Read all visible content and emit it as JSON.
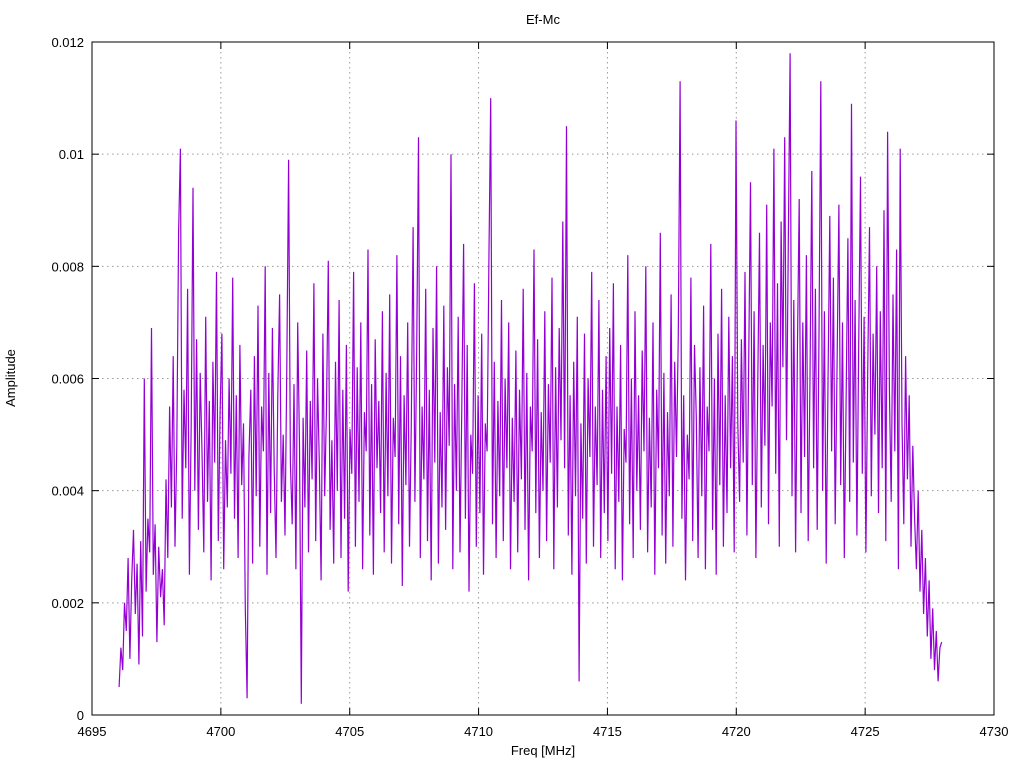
{
  "chart_data": {
    "type": "line",
    "title": "Ef-Mc",
    "xlabel": "Freq [MHz]",
    "ylabel": "Amplitude",
    "xlim": [
      4695,
      4730
    ],
    "ylim": [
      0,
      0.012
    ],
    "xtick_values": [
      4695,
      4700,
      4705,
      4710,
      4715,
      4720,
      4725,
      4730
    ],
    "xtick_labels": [
      "4695",
      "4700",
      "4705",
      "4710",
      "4715",
      "4720",
      "4725",
      "4730"
    ],
    "ytick_values": [
      0,
      0.002,
      0.004,
      0.006,
      0.008,
      0.01,
      0.012
    ],
    "ytick_labels": [
      "0",
      "0.002",
      "0.004",
      "0.006",
      "0.008",
      "0.01",
      "0.012"
    ],
    "grid": true,
    "legend": "none",
    "background_color": "#ffffff",
    "axis_color": "#000000",
    "grid_color": "#9a9a9a",
    "line_color": "#9400d3",
    "series_name": "Ef-Mc",
    "x_start": 4696.05,
    "x_step": 0.07,
    "amplitude_unit": 0.0001,
    "amplitudes": [
      5,
      12,
      8,
      20,
      15,
      28,
      10,
      24,
      33,
      18,
      27,
      9,
      31,
      14,
      60,
      22,
      35,
      29,
      69,
      25,
      34,
      13,
      30,
      21,
      26,
      16,
      42,
      28,
      55,
      37,
      64,
      30,
      48,
      86,
      101,
      35,
      58,
      44,
      76,
      25,
      52,
      94,
      40,
      67,
      33,
      61,
      47,
      29,
      71,
      38,
      56,
      24,
      63,
      45,
      79,
      31,
      54,
      68,
      26,
      49,
      37,
      60,
      43,
      78,
      35,
      57,
      28,
      66,
      41,
      52,
      19,
      3,
      46,
      58,
      27,
      64,
      39,
      73,
      30,
      55,
      47,
      80,
      25,
      61,
      36,
      69,
      44,
      28,
      57,
      75,
      38,
      50,
      32,
      62,
      99,
      45,
      34,
      59,
      26,
      70,
      48,
      2,
      53,
      37,
      65,
      29,
      56,
      42,
      77,
      31,
      60,
      45,
      24,
      68,
      39,
      55,
      81,
      33,
      49,
      27,
      63,
      40,
      74,
      28,
      58,
      35,
      66,
      22,
      51,
      43,
      79,
      30,
      62,
      38,
      70,
      26,
      54,
      47,
      83,
      32,
      59,
      25,
      67,
      44,
      56,
      36,
      72,
      29,
      61,
      39,
      75,
      27,
      53,
      46,
      82,
      34,
      64,
      23,
      57,
      41,
      70,
      30,
      52,
      87,
      38,
      65,
      103,
      28,
      55,
      42,
      76,
      31,
      58,
      24,
      69,
      45,
      80,
      27,
      54,
      37,
      73,
      33,
      62,
      48,
      100,
      26,
      59,
      40,
      71,
      29,
      55,
      84,
      35,
      66,
      22,
      50,
      43,
      77,
      30,
      57,
      36,
      68,
      25,
      52,
      47,
      81,
      110,
      34,
      63,
      28,
      56,
      39,
      74,
      31,
      60,
      44,
      70,
      26,
      53,
      38,
      65,
      29,
      58,
      42,
      76,
      33,
      61,
      24,
      55,
      47,
      83,
      36,
      67,
      28,
      54,
      40,
      72,
      31,
      59,
      45,
      78,
      26,
      62,
      37,
      69,
      49,
      88,
      44,
      105,
      32,
      57,
      25,
      63,
      39,
      71,
      6,
      52,
      35,
      68,
      27,
      60,
      46,
      79,
      30,
      55,
      41,
      74,
      28,
      58,
      36,
      64,
      31,
      69,
      43,
      77,
      26,
      55,
      38,
      66,
      24,
      51,
      45,
      82,
      34,
      60,
      28,
      72,
      40,
      57,
      33,
      65,
      47,
      80,
      29,
      53,
      37,
      70,
      25,
      58,
      44,
      86,
      32,
      61,
      27,
      54,
      39,
      75,
      30,
      63,
      46,
      68,
      113,
      35,
      57,
      24,
      50,
      42,
      78,
      31,
      66,
      53,
      28,
      62,
      39,
      73,
      26,
      55,
      47,
      84,
      33,
      60,
      25,
      68,
      41,
      76,
      30,
      57,
      36,
      71,
      44,
      64,
      29,
      106,
      52,
      38,
      67,
      45,
      79,
      32,
      63,
      95,
      41,
      72,
      28,
      58,
      86,
      37,
      66,
      48,
      91,
      34,
      70,
      55,
      101,
      43,
      77,
      30,
      88,
      62,
      103,
      49,
      84,
      118,
      39,
      74,
      29,
      65,
      92,
      36,
      70,
      46,
      82,
      31,
      60,
      97,
      44,
      76,
      33,
      68,
      113,
      40,
      72,
      27,
      59,
      89,
      47,
      78,
      34,
      63,
      91,
      41,
      70,
      28,
      56,
      85,
      38,
      109,
      45,
      74,
      32,
      66,
      96,
      43,
      71,
      29,
      61,
      87,
      39,
      68,
      50,
      80,
      36,
      72,
      44,
      90,
      31,
      104,
      58,
      38,
      75,
      47,
      83,
      26,
      101,
      52,
      34,
      64,
      42,
      57,
      30,
      48,
      35,
      26,
      40,
      22,
      33,
      18,
      28,
      14,
      24,
      10,
      19,
      8,
      15,
      6,
      12,
      13
    ]
  }
}
